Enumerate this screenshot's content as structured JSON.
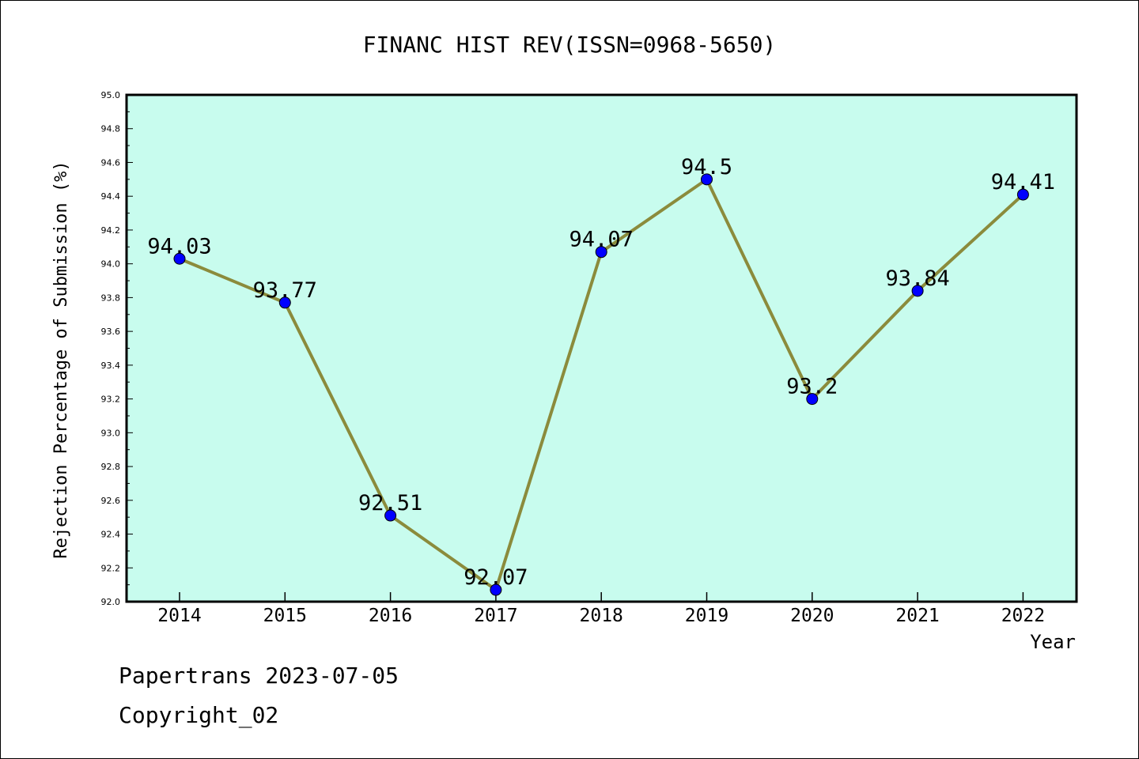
{
  "chart_data": {
    "type": "line",
    "title": "FINANC HIST REV(ISSN=0968-5650)",
    "xlabel": "Year",
    "ylabel": "Rejection Percentage of Submission (%)",
    "categories": [
      "2014",
      "2015",
      "2016",
      "2017",
      "2018",
      "2019",
      "2020",
      "2021",
      "2022"
    ],
    "values": [
      94.03,
      93.77,
      92.51,
      92.07,
      94.07,
      94.5,
      93.2,
      93.84,
      94.41
    ],
    "data_labels": [
      "94.03",
      "93.77",
      "92.51",
      "92.07",
      "94.07",
      "94.5",
      "93.2",
      "93.84",
      "94.41"
    ],
    "ylim": [
      92.0,
      95.0
    ],
    "yticks": [
      "92.0",
      "92.2",
      "92.4",
      "92.6",
      "92.8",
      "93.0",
      "93.2",
      "93.4",
      "93.6",
      "93.8",
      "94.0",
      "94.2",
      "94.4",
      "94.6",
      "94.8",
      "95.0"
    ],
    "grid": false,
    "legend": "none",
    "colors": {
      "plot_background": "#c8fcee",
      "line": "#8b8b3c",
      "marker": "#0000ff"
    }
  },
  "footer": {
    "line1": "Papertrans 2023-07-05",
    "line2": "Copyright_02"
  }
}
